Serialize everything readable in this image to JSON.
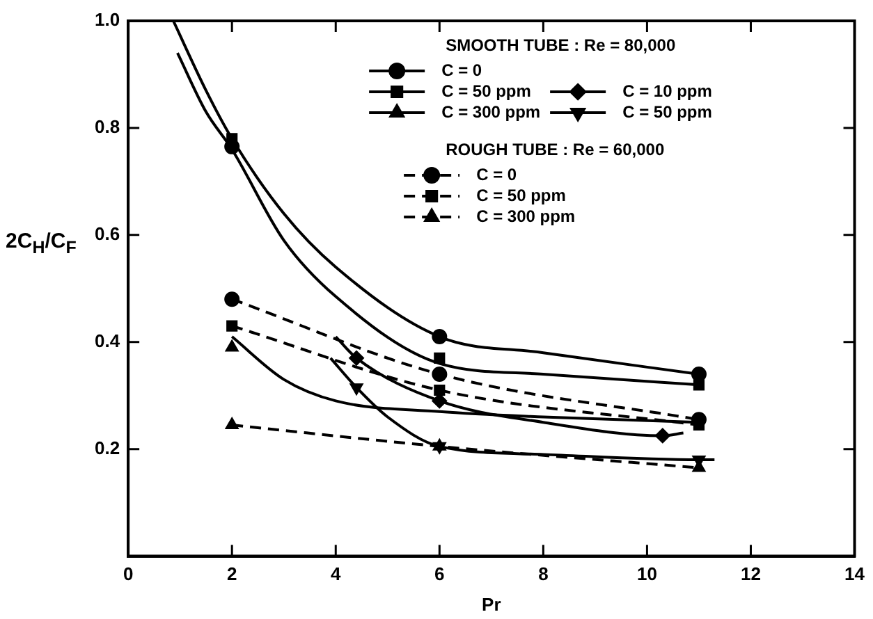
{
  "chart_data": {
    "type": "line",
    "xlabel": "Pr",
    "ylabel": "2C$_{H}$/C$_{F}$",
    "xlim": [
      0,
      14
    ],
    "ylim": [
      0,
      1
    ],
    "xticks": [
      0,
      2,
      4,
      6,
      8,
      10,
      12,
      14
    ],
    "yticks": [
      0.2,
      0.4,
      0.6,
      0.8,
      {
        "value": 1,
        "label": "1.0"
      }
    ],
    "tick_labels": "xy",
    "grid": false,
    "legend": "top right",
    "annotations": [
      "SMOOTH TUBE : Re = 80,000",
      "ROUGH TUBE : Re = 60,000"
    ],
    "series": [
      {
        "name": "C = 0",
        "type": "scatter",
        "marker": "circle",
        "line_style": "solid",
        "color": "#000000",
        "x": [
          2,
          6,
          11
        ],
        "values": [
          0.765,
          0.41,
          0.34
        ]
      },
      {
        "name": "C = 50 ppm",
        "type": "scatter",
        "marker": "square",
        "line_style": "solid",
        "color": "#000000",
        "x": [
          2,
          6,
          11
        ],
        "values": [
          0.78,
          0.37,
          0.32
        ]
      },
      {
        "name": "C = 300 ppm",
        "type": "scatter",
        "marker": "triangle",
        "line_style": "solid",
        "color": "#000000",
        "x": [
          2
        ],
        "values": [
          0.39
        ]
      },
      {
        "name": "C = 10 ppm",
        "type": "scatter",
        "marker": "diamond",
        "line_style": "solid",
        "color": "#000000",
        "x": [
          4.4,
          6,
          10.3
        ],
        "values": [
          0.37,
          0.29,
          0.225
        ]
      },
      {
        "name": "C = 50 ppm",
        "type": "scatter",
        "marker": "triangle-down",
        "line_style": "solid",
        "color": "#000000",
        "x": [
          4.4,
          6,
          11
        ],
        "values": [
          0.315,
          0.205,
          0.18
        ]
      },
      {
        "name": "C = 0",
        "type": "line",
        "marker": "circle",
        "line_style": "dashed",
        "color": "#000000",
        "x": [
          2,
          6,
          11
        ],
        "values": [
          0.48,
          0.34,
          0.255
        ]
      },
      {
        "name": "C = 50 ppm",
        "type": "line",
        "marker": "square",
        "line_style": "dashed",
        "color": "#000000",
        "x": [
          2,
          6,
          11
        ],
        "values": [
          0.43,
          0.31,
          0.245
        ]
      },
      {
        "name": "C = 300 ppm",
        "type": "line",
        "marker": "triangle",
        "line_style": "dashed",
        "color": "#000000",
        "x": [
          2,
          6,
          11
        ],
        "values": [
          0.245,
          0.205,
          0.165
        ]
      },
      {
        "type": "line",
        "marker": "none",
        "line_style": "solid",
        "color": "#000000",
        "x": [
          0.87,
          1.5,
          2,
          3,
          4,
          6,
          8,
          11
        ],
        "values": [
          1.0,
          0.87,
          0.78,
          0.64,
          0.54,
          0.41,
          0.38,
          0.34
        ]
      },
      {
        "type": "line",
        "marker": "none",
        "line_style": "solid",
        "color": "#000000",
        "x": [
          0.95,
          1.5,
          2,
          3,
          4,
          6,
          8,
          11
        ],
        "values": [
          0.94,
          0.83,
          0.76,
          0.59,
          0.485,
          0.36,
          0.34,
          0.32
        ]
      },
      {
        "type": "line",
        "marker": "none",
        "line_style": "solid",
        "color": "#000000",
        "x": [
          2,
          3,
          4,
          6,
          8,
          11
        ],
        "values": [
          0.41,
          0.33,
          0.29,
          0.27,
          0.26,
          0.25
        ]
      },
      {
        "type": "line",
        "marker": "none",
        "line_style": "solid",
        "color": "#000000",
        "x": [
          4,
          4.4,
          6,
          8,
          10.3,
          10.7
        ],
        "values": [
          0.41,
          0.37,
          0.29,
          0.25,
          0.225,
          0.23
        ]
      },
      {
        "type": "line",
        "marker": "none",
        "line_style": "solid",
        "color": "#000000",
        "x": [
          3.9,
          4.4,
          5,
          6,
          8,
          11,
          11.3
        ],
        "values": [
          0.37,
          0.315,
          0.26,
          0.205,
          0.19,
          0.18,
          0.18
        ]
      }
    ]
  }
}
